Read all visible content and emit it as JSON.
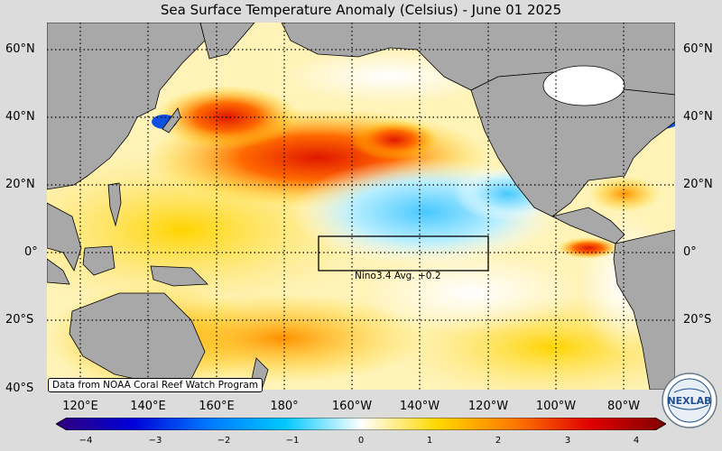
{
  "title": "Sea Surface Temperature Anomaly (Celsius) - June 01 2025",
  "lat_labels": [
    "60°N",
    "40°N",
    "20°N",
    "0°",
    "20°S",
    "40°S"
  ],
  "lon_labels": [
    "120°E",
    "140°E",
    "160°E",
    "180°",
    "160°W",
    "140°W",
    "120°W",
    "100°W",
    "80°W"
  ],
  "region_box": {
    "name": "Nino3.4",
    "label": "Nino3.4 Avg. +0.2",
    "lon_range": [
      "170°W",
      "120°W"
    ],
    "lat_range": [
      "5°S",
      "5°N"
    ],
    "value": 0.2
  },
  "credit": "Data from NOAA Coral Reef Watch Program",
  "colorbar": {
    "ticks": [
      "−4",
      "−3",
      "−2",
      "−1",
      "0",
      "1",
      "2",
      "3",
      "4"
    ],
    "range": [
      -4,
      4
    ],
    "colors": [
      "#30007a",
      "#0000d8",
      "#0078ff",
      "#00c8ff",
      "#ffffff",
      "#ffd800",
      "#ff7a00",
      "#e00000",
      "#800000"
    ]
  },
  "logo_text": "NEXLAB",
  "colors": {
    "background": "#dcdcdc",
    "land": "#a8a8a8",
    "warm_anomaly": "#ff8c00",
    "cool_anomaly": "#70d0ff"
  }
}
